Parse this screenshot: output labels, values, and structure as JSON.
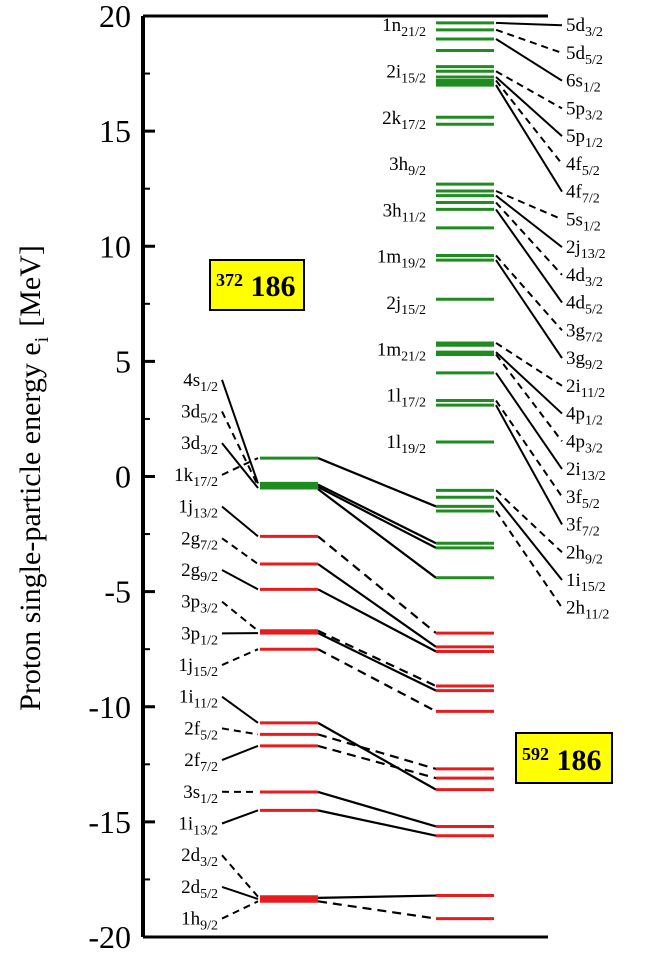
{
  "chart_data": {
    "type": "level-scheme",
    "ylabel": "Proton single-particle energy e",
    "ylabel_sub": "i",
    "ylabel_unit": "[MeV]",
    "ylim": [
      -20,
      20
    ],
    "yticks": [
      20,
      15,
      10,
      5,
      0,
      -5,
      -10,
      -15,
      -20
    ],
    "colors": {
      "occupied": "#e81c1c",
      "empty": "#1e8c1e",
      "connector": "#000000",
      "box": "#ffff00"
    },
    "nuclei": [
      {
        "mass": "372",
        "z": "186"
      },
      {
        "mass": "592",
        "z": "186"
      }
    ],
    "left_levels": [
      {
        "name": "4s",
        "j": "1/2",
        "e": -0.3,
        "occupied": false
      },
      {
        "name": "3d",
        "j": "5/2",
        "e": -0.4,
        "occupied": false
      },
      {
        "name": "3d",
        "j": "3/2",
        "e": -0.5,
        "occupied": false
      },
      {
        "name": "1k",
        "j": "17/2",
        "e": 0.8,
        "occupied": false
      },
      {
        "name": "1j",
        "j": "13/2",
        "e": -2.6,
        "occupied": true
      },
      {
        "name": "2g",
        "j": "7/2",
        "e": -3.8,
        "occupied": true
      },
      {
        "name": "2g",
        "j": "9/2",
        "e": -4.9,
        "occupied": true
      },
      {
        "name": "3p",
        "j": "3/2",
        "e": -6.7,
        "occupied": true
      },
      {
        "name": "3p",
        "j": "1/2",
        "e": -6.8,
        "occupied": true
      },
      {
        "name": "1j",
        "j": "15/2",
        "e": -7.5,
        "occupied": true
      },
      {
        "name": "1i",
        "j": "11/2",
        "e": -10.7,
        "occupied": true
      },
      {
        "name": "2f",
        "j": "5/2",
        "e": -11.2,
        "occupied": true
      },
      {
        "name": "2f",
        "j": "7/2",
        "e": -11.7,
        "occupied": true
      },
      {
        "name": "3s",
        "j": "1/2",
        "e": -13.7,
        "occupied": true
      },
      {
        "name": "1i",
        "j": "13/2",
        "e": -14.5,
        "occupied": true
      },
      {
        "name": "2d",
        "j": "3/2",
        "e": -18.25,
        "occupied": true
      },
      {
        "name": "2d",
        "j": "5/2",
        "e": -18.35,
        "occupied": true
      },
      {
        "name": "1h",
        "j": "9/2",
        "e": -18.45,
        "occupied": true
      }
    ],
    "right_levels": [
      {
        "name": "5d",
        "j": "3/2",
        "e": 19.7,
        "occupied": false
      },
      {
        "name": "5d",
        "j": "5/2",
        "e": 19.4,
        "occupied": false
      },
      {
        "name": "1n",
        "j": "21/2",
        "e": 18.5,
        "occupied": false
      },
      {
        "name": "6s",
        "j": "1/2",
        "e": 19.0,
        "occupied": false
      },
      {
        "name": "2i",
        "j": "15/2",
        "e": 17.8,
        "occupied": false
      },
      {
        "name": "5p",
        "j": "3/2",
        "e": 17.6,
        "occupied": false
      },
      {
        "name": "2k",
        "j": "17/2",
        "e": 17.1,
        "occupied": false
      },
      {
        "name": "5p",
        "j": "1/2",
        "e": 17.35,
        "occupied": false
      },
      {
        "name": "4f",
        "j": "5/2",
        "e": 17.2,
        "occupied": false
      },
      {
        "name": "4f",
        "j": "7/2",
        "e": 17.0,
        "occupied": false
      },
      {
        "name": "3h",
        "j": "9/2",
        "e": 15.6,
        "occupied": false
      },
      {
        "name": "3h",
        "j": "11/2",
        "e": 15.3,
        "occupied": false
      },
      {
        "name": "1m",
        "j": "19/2",
        "e": 12.7,
        "occupied": false
      },
      {
        "name": "5s",
        "j": "1/2",
        "e": 12.4,
        "occupied": false
      },
      {
        "name": "2j",
        "j": "13/2",
        "e": 12.2,
        "occupied": false
      },
      {
        "name": "4d",
        "j": "3/2",
        "e": 11.9,
        "occupied": false
      },
      {
        "name": "2j",
        "j": "15/2",
        "e": 10.8,
        "occupied": false
      },
      {
        "name": "4d",
        "j": "5/2",
        "e": 11.6,
        "occupied": false
      },
      {
        "name": "1m",
        "j": "21/2",
        "e": 7.7,
        "occupied": false
      },
      {
        "name": "3g",
        "j": "7/2",
        "e": 9.6,
        "occupied": false
      },
      {
        "name": "3g",
        "j": "9/2",
        "e": 9.4,
        "occupied": false
      },
      {
        "name": "1l",
        "j": "17/2",
        "e": 5.7,
        "occupied": false
      },
      {
        "name": "2i",
        "j": "11/2",
        "e": 5.8,
        "occupied": false
      },
      {
        "name": "4p",
        "j": "1/2",
        "e": 5.4,
        "occupied": false
      },
      {
        "name": "4p",
        "j": "3/2",
        "e": 5.3,
        "occupied": false
      },
      {
        "name": "2i",
        "j": "13/2",
        "e": 4.5,
        "occupied": false
      },
      {
        "name": "1l",
        "j": "19/2",
        "e": 1.5,
        "occupied": false
      },
      {
        "name": "3f",
        "j": "5/2",
        "e": 3.3,
        "occupied": false
      },
      {
        "name": "3f",
        "j": "7/2",
        "e": 3.1,
        "occupied": false
      },
      {
        "name": "2h",
        "j": "9/2",
        "e": -0.6,
        "occupied": false
      },
      {
        "name": "1i",
        "j": "15/2",
        "e": -0.9,
        "occupied": false
      },
      {
        "name": "2h",
        "j": "11/2",
        "e": -1.5,
        "occupied": false
      }
    ],
    "extra_right_lines": [
      {
        "e": -1.3,
        "occupied": false
      },
      {
        "e": -2.9,
        "occupied": false
      },
      {
        "e": -3.1,
        "occupied": false
      },
      {
        "e": -4.4,
        "occupied": false
      },
      {
        "e": -6.8,
        "occupied": true
      },
      {
        "e": -7.4,
        "occupied": true
      },
      {
        "e": -7.6,
        "occupied": true
      },
      {
        "e": -9.1,
        "occupied": true
      },
      {
        "e": -9.3,
        "occupied": true
      },
      {
        "e": -10.2,
        "occupied": true
      },
      {
        "e": -12.7,
        "occupied": true
      },
      {
        "e": -13.1,
        "occupied": true
      },
      {
        "e": -13.6,
        "occupied": true
      },
      {
        "e": -15.2,
        "occupied": true
      },
      {
        "e": -15.6,
        "occupied": true
      },
      {
        "e": -18.2,
        "occupied": true
      },
      {
        "e": -19.2,
        "occupied": true
      }
    ]
  }
}
